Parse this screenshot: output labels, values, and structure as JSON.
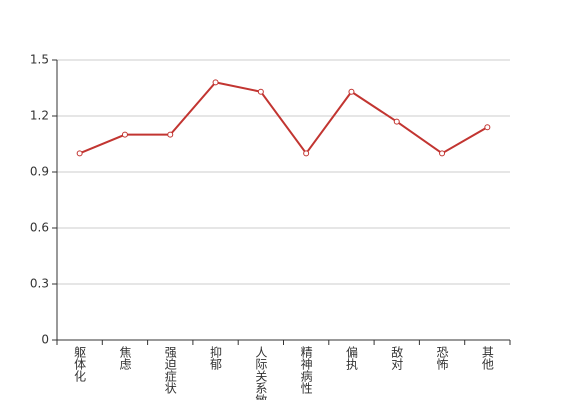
{
  "chart_data": {
    "type": "line",
    "categories": [
      "躯体化",
      "焦虑",
      "强迫症状",
      "抑郁",
      "人际关系敏感",
      "精神病性",
      "偏执",
      "敌对",
      "恐怖",
      "其他"
    ],
    "series": [
      {
        "color": "#c23531",
        "values": [
          1.0,
          1.1,
          1.1,
          1.38,
          1.33,
          1.0,
          1.33,
          1.17,
          1.0,
          1.14
        ]
      }
    ],
    "ylim": [
      0,
      1.5
    ],
    "yticks": [
      0,
      0.3,
      0.6,
      0.9,
      1.2,
      1.5
    ],
    "grid": true
  }
}
